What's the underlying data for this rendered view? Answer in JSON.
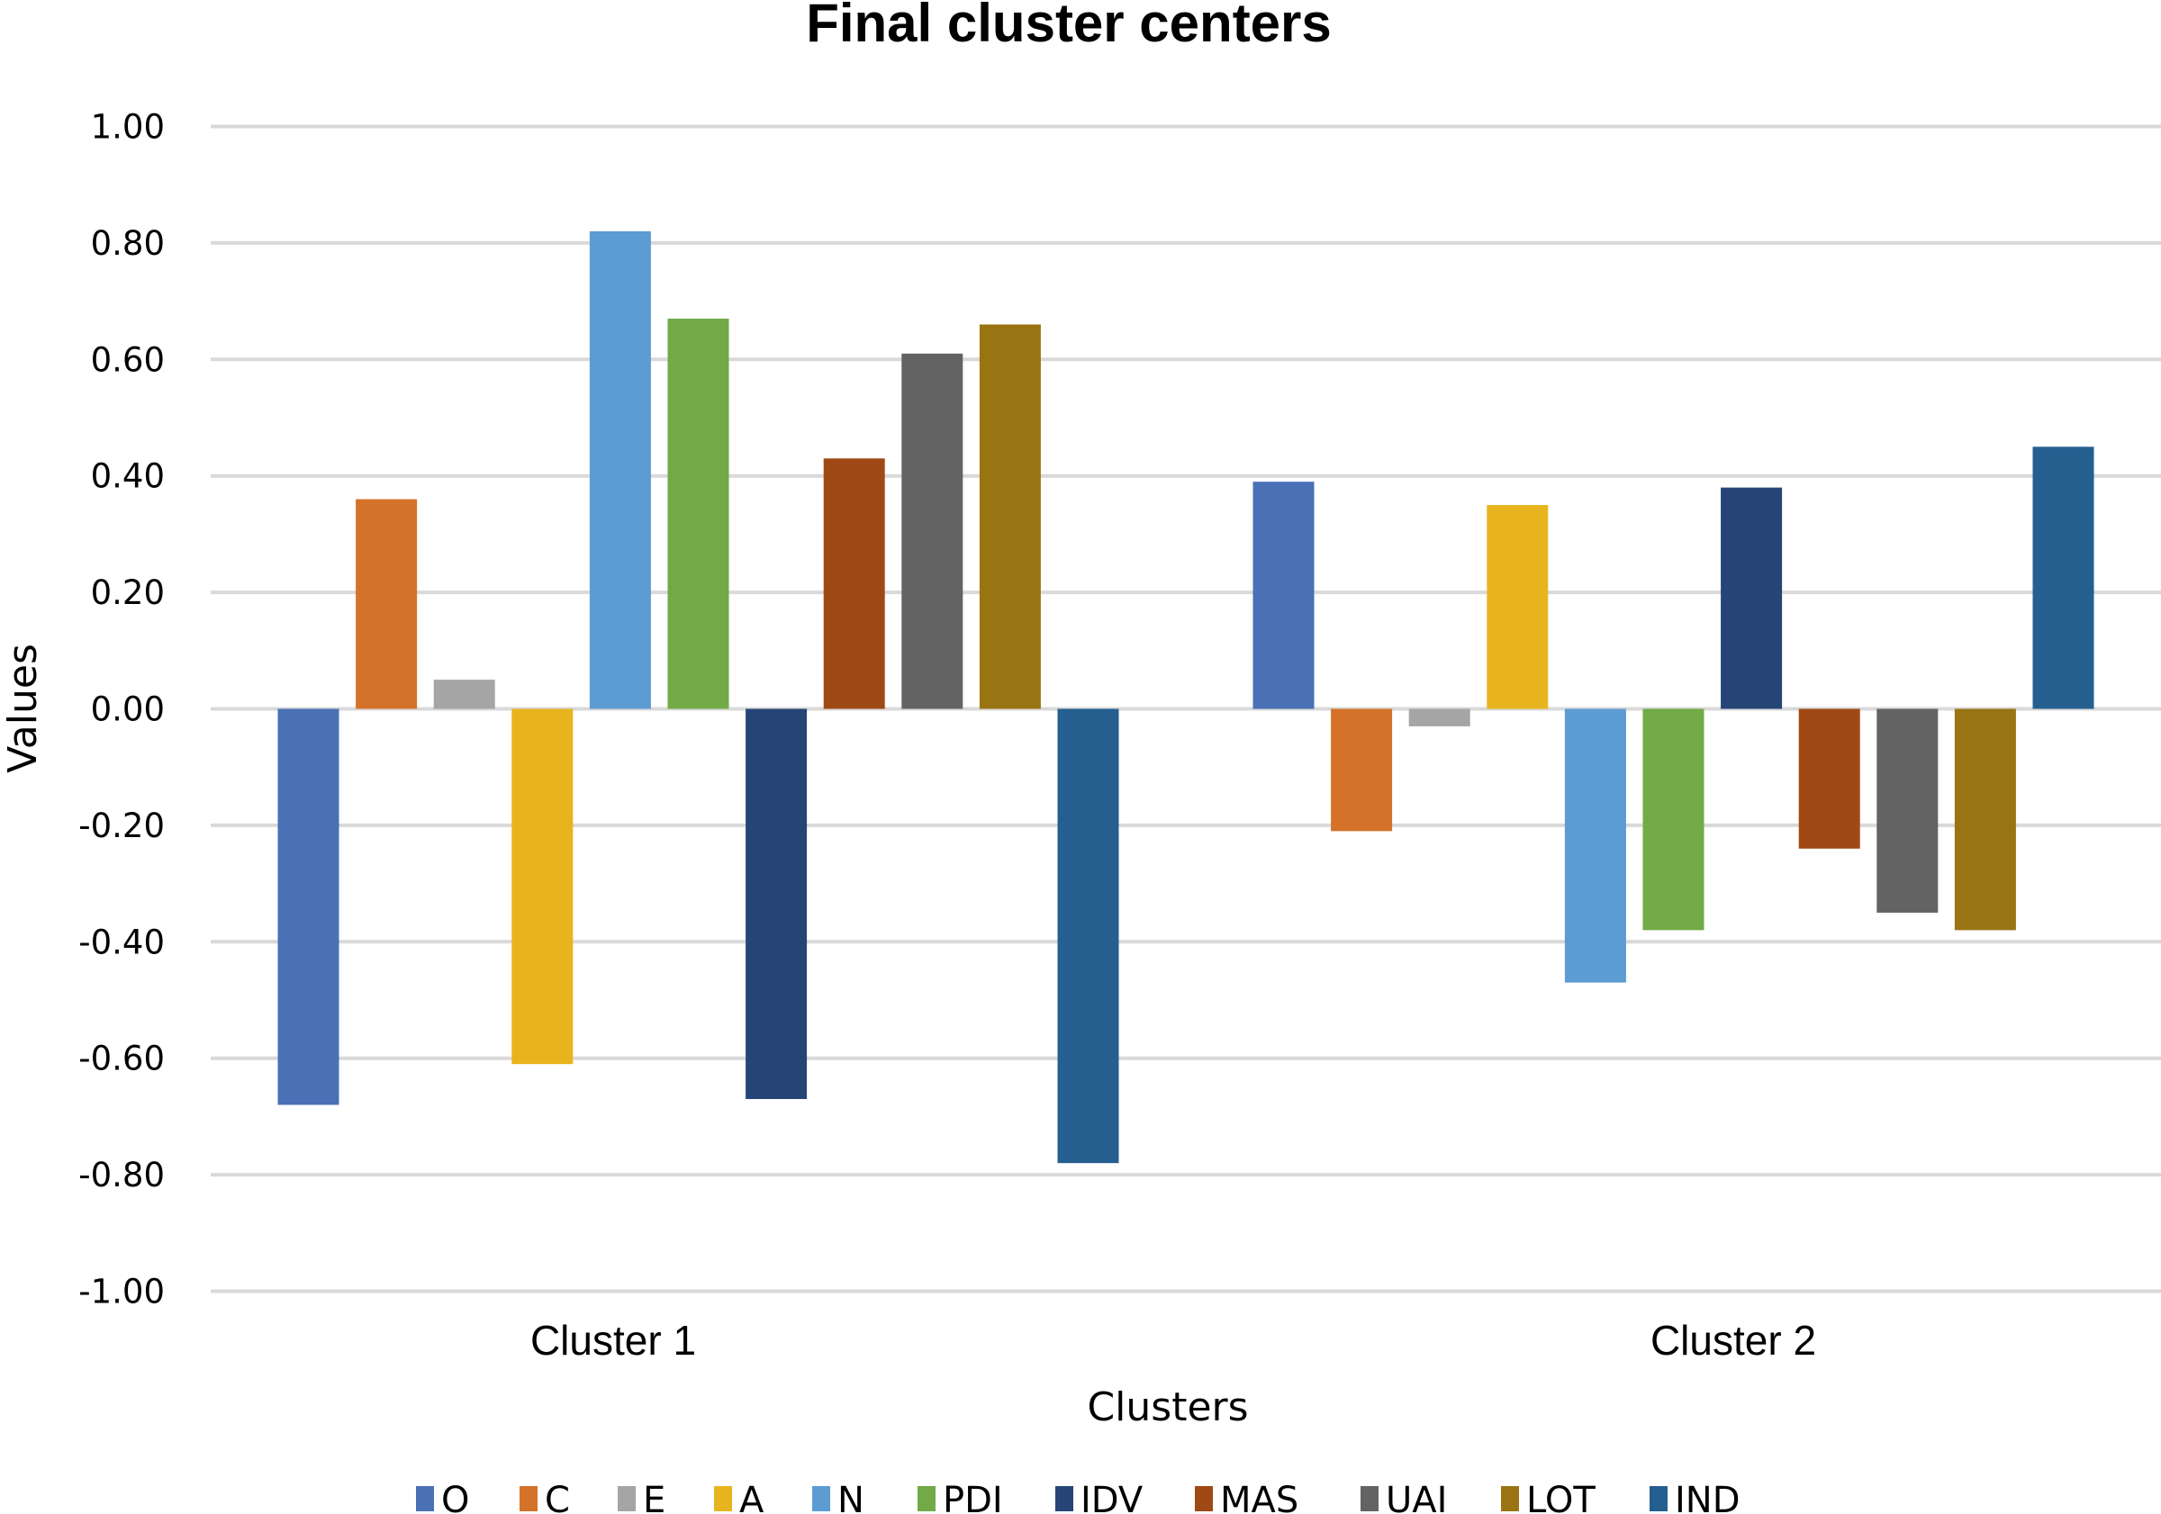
{
  "chart_data": {
    "type": "bar",
    "title": "Final cluster centers",
    "xlabel": "Clusters",
    "ylabel": "Values",
    "ylim": [
      -1.0,
      1.0
    ],
    "yticks": [
      "1.00",
      "0.80",
      "0.60",
      "0.40",
      "0.20",
      "0.00",
      "-0.20",
      "-0.40",
      "-0.60",
      "-0.80",
      "-1.00"
    ],
    "ytick_values": [
      1.0,
      0.8,
      0.6,
      0.4,
      0.2,
      0.0,
      -0.2,
      -0.4,
      -0.6,
      -0.8,
      -1.0
    ],
    "grid": true,
    "legend_position": "bottom",
    "categories": [
      "Cluster 1",
      "Cluster 2"
    ],
    "series": [
      {
        "name": "O",
        "color": "#4A70B5",
        "values": [
          -0.68,
          0.39
        ]
      },
      {
        "name": "C",
        "color": "#D4722A",
        "values": [
          0.36,
          -0.21
        ]
      },
      {
        "name": "E",
        "color": "#A5A5A5",
        "values": [
          0.05,
          -0.03
        ]
      },
      {
        "name": "A",
        "color": "#E8B41E",
        "values": [
          -0.61,
          0.35
        ]
      },
      {
        "name": "N",
        "color": "#5D9BD3",
        "values": [
          0.82,
          -0.47
        ]
      },
      {
        "name": "PDI",
        "color": "#71AA46",
        "values": [
          0.67,
          -0.38
        ]
      },
      {
        "name": "IDV",
        "color": "#264577",
        "values": [
          -0.67,
          0.38
        ]
      },
      {
        "name": "MAS",
        "color": "#9F4A14",
        "values": [
          0.43,
          -0.24
        ]
      },
      {
        "name": "UAI",
        "color": "#636363",
        "values": [
          0.61,
          -0.35
        ]
      },
      {
        "name": "LOT",
        "color": "#9A7413",
        "values": [
          0.66,
          -0.38
        ]
      },
      {
        "name": "IND",
        "color": "#245F90",
        "values": [
          -0.78,
          0.45
        ]
      }
    ]
  }
}
